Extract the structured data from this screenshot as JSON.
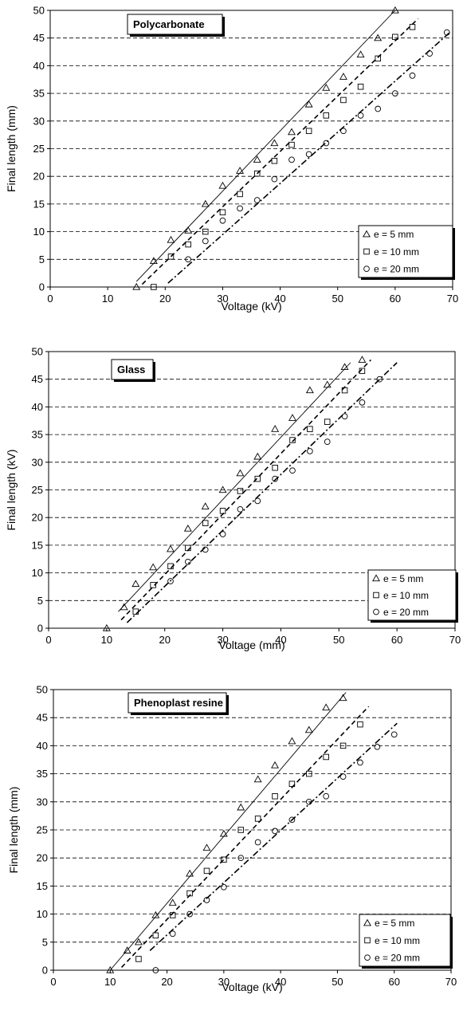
{
  "chart_data": [
    {
      "type": "scatter",
      "title": "Polycarbonate",
      "xlabel": "Voltage (kV)",
      "ylabel": "Final length (mm)",
      "xlim": [
        0,
        70
      ],
      "ylim": [
        0,
        50
      ],
      "xticks": [
        "0",
        "10",
        "20",
        "30",
        "40",
        "50",
        "60",
        "70"
      ],
      "yticks": [
        "0",
        "5",
        "10",
        "15",
        "20",
        "25",
        "30",
        "35",
        "40",
        "45",
        "50"
      ],
      "grid": "horizontal dashed",
      "legend_position": "bottom-right",
      "series": [
        {
          "name": "e = 5 mm",
          "marker": "triangle",
          "line": "solid",
          "x": [
            15,
            18,
            21,
            24,
            27,
            30,
            33,
            36,
            39,
            42,
            45,
            48,
            51,
            54,
            57,
            60
          ],
          "y": [
            0,
            4.7,
            8.5,
            10.2,
            15,
            18.3,
            21,
            23,
            26,
            28,
            33,
            36,
            38,
            42,
            45,
            50
          ],
          "fit": [
            [
              15,
              1
            ],
            [
              60,
              50
            ]
          ]
        },
        {
          "name": "e = 10 mm",
          "marker": "square",
          "line": "dashed",
          "x": [
            18,
            21,
            24,
            27,
            30,
            33,
            36,
            39,
            42,
            45,
            48,
            51,
            54,
            57,
            60,
            63
          ],
          "y": [
            0,
            5.5,
            7.7,
            10,
            13.5,
            16.8,
            20.5,
            22.8,
            25.7,
            28.2,
            31,
            33.8,
            36.2,
            41.3,
            45.2,
            47
          ],
          "fit": [
            [
              16,
              0.5
            ],
            [
              64,
              48.5
            ]
          ]
        },
        {
          "name": "e = 20 mm",
          "marker": "circle",
          "line": "dash-dot",
          "x": [
            24,
            27,
            30,
            33,
            36,
            39,
            42,
            45,
            48,
            51,
            54,
            57,
            60,
            63,
            66,
            69
          ],
          "y": [
            5,
            8.3,
            12,
            14.2,
            15.7,
            19.5,
            23,
            24,
            26,
            28.2,
            31,
            32.2,
            35,
            38.2,
            42.2,
            46
          ],
          "fit": [
            [
              20.5,
              0.7
            ],
            [
              69.5,
              46
            ]
          ]
        }
      ]
    },
    {
      "type": "scatter",
      "title": "Glass",
      "xlabel": "Voltage (mm)",
      "ylabel": "Final length (kV)",
      "xlim": [
        0,
        70
      ],
      "ylim": [
        0,
        50
      ],
      "xticks": [
        "0",
        "10",
        "20",
        "30",
        "40",
        "50",
        "60",
        "70"
      ],
      "yticks": [
        "0",
        "5",
        "10",
        "15",
        "20",
        "25",
        "30",
        "35",
        "40",
        "45",
        "50"
      ],
      "grid": "horizontal dashed",
      "legend_position": "bottom-right",
      "series": [
        {
          "name": "e = 5 mm",
          "marker": "triangle",
          "line": "solid",
          "x": [
            10,
            13,
            15,
            18,
            21,
            24,
            27,
            30,
            33,
            36,
            39,
            42,
            45,
            48,
            51,
            54
          ],
          "y": [
            0,
            3.8,
            8,
            11,
            14.3,
            18,
            22,
            25,
            28,
            31,
            36,
            38,
            43,
            44,
            47.2,
            48.5
          ],
          "fit": [
            [
              12,
              3
            ],
            [
              52,
              48
            ]
          ]
        },
        {
          "name": "e = 10 mm",
          "marker": "square",
          "line": "dashed",
          "x": [
            15,
            18,
            21,
            24,
            27,
            30,
            33,
            36,
            39,
            42,
            45,
            48,
            51,
            54
          ],
          "y": [
            3,
            7.8,
            11.2,
            14.5,
            19,
            21.2,
            24.8,
            27,
            29,
            34,
            36,
            37.3,
            43,
            46.5
          ],
          "fit": [
            [
              12.5,
              1.5
            ],
            [
              55.5,
              48.5
            ]
          ]
        },
        {
          "name": "e = 20 mm",
          "marker": "circle",
          "line": "dash-dot",
          "x": [
            21,
            24,
            27,
            30,
            33,
            36,
            39,
            42,
            45,
            48,
            51,
            54,
            57
          ],
          "y": [
            8.5,
            12,
            14.2,
            17,
            21.5,
            23,
            27,
            28.5,
            32,
            33.7,
            38.3,
            40.8,
            45
          ],
          "fit": [
            [
              13.5,
              1
            ],
            [
              60,
              48
            ]
          ]
        }
      ]
    },
    {
      "type": "scatter",
      "title": "Phenoplast resine",
      "xlabel": "Voltage (kV)",
      "ylabel": "Final length (mm)",
      "xlim": [
        0,
        70
      ],
      "ylim": [
        0,
        50
      ],
      "xticks": [
        "0",
        "10",
        "20",
        "30",
        "40",
        "50",
        "60",
        "70"
      ],
      "yticks": [
        "0",
        "5",
        "10",
        "15",
        "20",
        "25",
        "30",
        "35",
        "40",
        "45",
        "50"
      ],
      "grid": "horizontal dashed",
      "legend_position": "bottom-right",
      "series": [
        {
          "name": "e = 5 mm",
          "marker": "triangle",
          "line": "solid",
          "x": [
            10,
            13,
            15,
            18,
            21,
            24,
            27,
            30,
            33,
            36,
            39,
            42,
            45,
            48,
            51
          ],
          "y": [
            0,
            3.5,
            5,
            9.8,
            12,
            17.2,
            21.8,
            24.3,
            29,
            34,
            36.5,
            40.8,
            42.8,
            46.8,
            48.5
          ],
          "fit": [
            [
              10,
              0
            ],
            [
              51.5,
              49.5
            ]
          ]
        },
        {
          "name": "e = 10 mm",
          "marker": "square",
          "line": "dashed",
          "x": [
            15,
            18,
            21,
            24,
            27,
            30,
            33,
            36,
            39,
            42,
            45,
            48,
            51,
            54
          ],
          "y": [
            2,
            6.2,
            9.8,
            13.7,
            17.7,
            19.7,
            25,
            27,
            31,
            33.2,
            35,
            38,
            40,
            43.8
          ],
          "fit": [
            [
              12,
              0.5
            ],
            [
              55.5,
              47
            ]
          ]
        },
        {
          "name": "e = 20 mm",
          "marker": "circle",
          "line": "dash-dot",
          "x": [
            18,
            21,
            24,
            27,
            30,
            33,
            36,
            39,
            42,
            45,
            48,
            51,
            54,
            57,
            60
          ],
          "y": [
            0,
            6.5,
            10,
            12.5,
            14.8,
            20,
            22.8,
            24.8,
            26.8,
            30,
            31,
            34.5,
            37,
            39.8,
            42
          ],
          "fit": [
            [
              17,
              3.5
            ],
            [
              60.5,
              44
            ]
          ]
        }
      ]
    }
  ]
}
